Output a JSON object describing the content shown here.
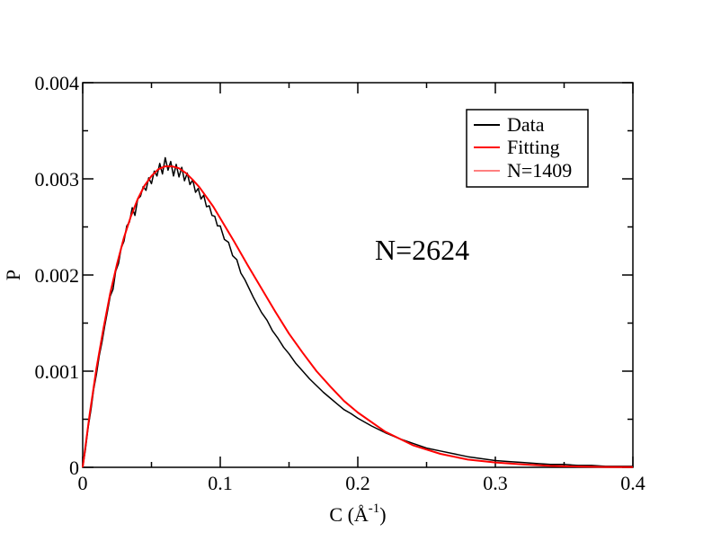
{
  "chart_data": {
    "type": "line",
    "title": "",
    "xlabel": "C (Å",
    "xlabel_sup": "-1",
    "xlabel_close": ")",
    "ylabel": "P",
    "xlim": [
      0,
      0.4
    ],
    "ylim": [
      0,
      0.004
    ],
    "xticks": [
      0,
      0.1,
      0.2,
      0.3,
      0.4
    ],
    "xtick_labels": [
      "0",
      "0.1",
      "0.2",
      "0.3",
      "0.4"
    ],
    "yticks": [
      0,
      0.001,
      0.002,
      0.003,
      0.004
    ],
    "ytick_labels": [
      "0",
      "0.001",
      "0.002",
      "0.003",
      "0.004"
    ],
    "grid": false,
    "legend_position": "top-right",
    "annotation": "N=2624",
    "series": [
      {
        "name": "Data",
        "color": "#000000",
        "x": [
          0,
          0.002,
          0.004,
          0.006,
          0.008,
          0.01,
          0.012,
          0.014,
          0.016,
          0.018,
          0.02,
          0.022,
          0.024,
          0.026,
          0.028,
          0.03,
          0.032,
          0.034,
          0.036,
          0.038,
          0.04,
          0.042,
          0.044,
          0.046,
          0.048,
          0.05,
          0.052,
          0.054,
          0.056,
          0.058,
          0.06,
          0.062,
          0.064,
          0.066,
          0.068,
          0.07,
          0.072,
          0.074,
          0.076,
          0.078,
          0.08,
          0.082,
          0.084,
          0.086,
          0.088,
          0.09,
          0.092,
          0.094,
          0.096,
          0.098,
          0.1,
          0.103,
          0.106,
          0.109,
          0.112,
          0.115,
          0.118,
          0.121,
          0.124,
          0.127,
          0.13,
          0.134,
          0.138,
          0.142,
          0.146,
          0.15,
          0.155,
          0.16,
          0.165,
          0.17,
          0.175,
          0.18,
          0.185,
          0.19,
          0.195,
          0.2,
          0.21,
          0.22,
          0.23,
          0.24,
          0.25,
          0.26,
          0.27,
          0.28,
          0.29,
          0.3,
          0.31,
          0.32,
          0.33,
          0.34,
          0.35,
          0.36,
          0.37,
          0.38,
          0.39,
          0.4
        ],
        "y": [
          0,
          0.00019,
          0.00042,
          0.0006,
          0.00081,
          0.00097,
          0.00116,
          0.0013,
          0.00147,
          0.00162,
          0.00178,
          0.00185,
          0.00204,
          0.00212,
          0.00228,
          0.00235,
          0.00251,
          0.00255,
          0.0027,
          0.00262,
          0.00279,
          0.00282,
          0.00292,
          0.00288,
          0.00301,
          0.00295,
          0.00308,
          0.00303,
          0.00316,
          0.00305,
          0.00322,
          0.00309,
          0.00318,
          0.00303,
          0.00315,
          0.00302,
          0.00312,
          0.00298,
          0.00306,
          0.00294,
          0.00299,
          0.00286,
          0.0029,
          0.00279,
          0.00283,
          0.00271,
          0.00272,
          0.00262,
          0.00261,
          0.00251,
          0.00251,
          0.00237,
          0.00234,
          0.0022,
          0.00216,
          0.00202,
          0.00195,
          0.00186,
          0.00177,
          0.00169,
          0.00161,
          0.00153,
          0.00142,
          0.00134,
          0.00125,
          0.00118,
          0.00108,
          0.001,
          0.00092,
          0.00085,
          0.00078,
          0.00072,
          0.00066,
          0.0006,
          0.00056,
          0.00051,
          0.00043,
          0.00036,
          0.0003,
          0.00025,
          0.0002,
          0.00017,
          0.00014,
          0.00011,
          9e-05,
          7e-05,
          6e-05,
          5e-05,
          4e-05,
          3e-05,
          3e-05,
          2e-05,
          2e-05,
          1e-05,
          1e-05,
          1e-05
        ]
      },
      {
        "name": "Fitting",
        "color": "#ff0000",
        "x": [
          0,
          0.005,
          0.01,
          0.015,
          0.02,
          0.025,
          0.03,
          0.035,
          0.04,
          0.045,
          0.05,
          0.055,
          0.06,
          0.065,
          0.07,
          0.075,
          0.08,
          0.085,
          0.09,
          0.095,
          0.1,
          0.11,
          0.12,
          0.13,
          0.14,
          0.15,
          0.16,
          0.17,
          0.18,
          0.19,
          0.2,
          0.22,
          0.24,
          0.26,
          0.28,
          0.3,
          0.32,
          0.34,
          0.36,
          0.38,
          0.4
        ],
        "y": [
          0,
          0.00055,
          0.00103,
          0.00144,
          0.00181,
          0.00212,
          0.00239,
          0.00261,
          0.00279,
          0.00293,
          0.00303,
          0.0031,
          0.00313,
          0.00313,
          0.00311,
          0.00306,
          0.00299,
          0.00291,
          0.00281,
          0.00271,
          0.00259,
          0.00235,
          0.0021,
          0.00186,
          0.00162,
          0.00139,
          0.00119,
          0.001,
          0.00084,
          0.00069,
          0.00057,
          0.00037,
          0.00023,
          0.00014,
          8e-05,
          5e-05,
          3e-05,
          1.5e-05,
          8e-06,
          4e-06,
          2e-06
        ]
      },
      {
        "name": "N=1409",
        "color": "#ff0000",
        "x": [],
        "y": []
      }
    ]
  }
}
